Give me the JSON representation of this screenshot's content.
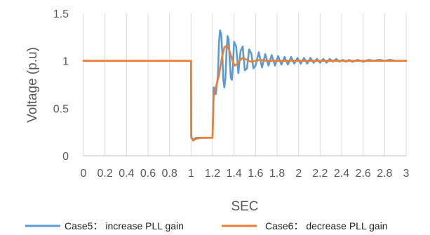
{
  "chart_data": {
    "type": "line",
    "title": "",
    "xlabel": "SEC",
    "ylabel": "Voltage (p.u)",
    "xlim": [
      0,
      3
    ],
    "ylim": [
      0,
      1.5
    ],
    "x_ticks": [
      0,
      0.2,
      0.4,
      0.6,
      0.8,
      1,
      1.2,
      1.4,
      1.6,
      1.8,
      2,
      2.2,
      2.4,
      2.6,
      2.8,
      3
    ],
    "x_tick_labels": [
      "0",
      "0.2",
      "0.4",
      "0.6",
      "0.8",
      "1",
      "1.2",
      "1.4",
      "1.6",
      "1.8",
      "2",
      "2.2",
      "2.4",
      "2.6",
      "2.8",
      "3"
    ],
    "y_ticks": [
      0,
      0.5,
      1,
      1.5
    ],
    "y_tick_labels": [
      "0",
      "0.5",
      "1",
      "1.5"
    ],
    "grid": "vertical",
    "legend_position": "bottom",
    "series": [
      {
        "name": "Case5： increase PLL gain",
        "color": "#5B9BD5",
        "x": [
          0,
          1,
          1.002,
          1.02,
          1.05,
          1.1,
          1.15,
          1.2,
          1.21,
          1.23,
          1.25,
          1.26,
          1.27,
          1.28,
          1.29,
          1.3,
          1.31,
          1.32,
          1.33,
          1.34,
          1.35,
          1.36,
          1.37,
          1.38,
          1.39,
          1.4,
          1.42,
          1.44,
          1.46,
          1.48,
          1.5,
          1.52,
          1.54,
          1.56,
          1.58,
          1.6,
          1.63,
          1.66,
          1.69,
          1.72,
          1.75,
          1.78,
          1.81,
          1.84,
          1.87,
          1.9,
          1.93,
          1.96,
          1.99,
          2.02,
          2.05,
          2.08,
          2.11,
          2.14,
          2.17,
          2.2,
          2.23,
          2.26,
          2.29,
          2.32,
          2.35,
          2.38,
          2.41,
          2.44,
          2.47,
          2.5,
          2.55,
          2.6,
          2.65,
          2.7,
          2.75,
          2.8,
          2.85,
          2.9,
          2.95,
          3
        ],
        "y": [
          1,
          1,
          0.19,
          0.17,
          0.19,
          0.19,
          0.19,
          0.19,
          0.72,
          0.65,
          0.85,
          1.2,
          1.32,
          1.28,
          1.1,
          0.8,
          0.72,
          0.82,
          1.1,
          1.26,
          1.22,
          1.0,
          0.82,
          0.8,
          0.95,
          1.2,
          1.15,
          0.87,
          1.1,
          1.15,
          0.9,
          0.92,
          1.12,
          1.08,
          0.92,
          0.95,
          1.09,
          0.93,
          1.07,
          0.95,
          1.06,
          0.95,
          1.05,
          0.96,
          1.04,
          0.96,
          1.04,
          0.97,
          1.03,
          0.97,
          1.03,
          0.97,
          1.03,
          0.98,
          1.02,
          0.98,
          1.02,
          0.98,
          1.02,
          0.99,
          1.02,
          0.99,
          1.01,
          0.99,
          1.01,
          0.99,
          1.01,
          0.99,
          1.01,
          1.0,
          1.01,
          1.0,
          1.01,
          1.0,
          1.0,
          1.0
        ]
      },
      {
        "name": "Case6： decrease PLL gain",
        "color": "#ED7D31",
        "x": [
          0,
          1,
          1.002,
          1.02,
          1.05,
          1.1,
          1.15,
          1.2,
          1.21,
          1.23,
          1.26,
          1.29,
          1.31,
          1.33,
          1.35,
          1.37,
          1.39,
          1.41,
          1.43,
          1.45,
          1.48,
          1.52,
          1.56,
          1.6,
          1.65,
          1.7,
          1.8,
          1.9,
          2.0,
          2.1,
          2.2,
          2.3,
          2.4,
          2.5,
          2.6,
          2.7,
          2.8,
          2.9,
          3
        ],
        "y": [
          1,
          1,
          0.2,
          0.16,
          0.18,
          0.19,
          0.19,
          0.19,
          0.62,
          0.72,
          0.85,
          1.05,
          1.14,
          1.16,
          1.13,
          1.06,
          0.98,
          0.95,
          0.97,
          1.0,
          1.03,
          1.01,
          0.99,
          1.0,
          1.01,
          1.0,
          1.0,
          1.0,
          1.0,
          1.0,
          1.0,
          1.0,
          1.0,
          1.0,
          1.0,
          1.0,
          1.0,
          1.0,
          1.0
        ]
      }
    ]
  }
}
